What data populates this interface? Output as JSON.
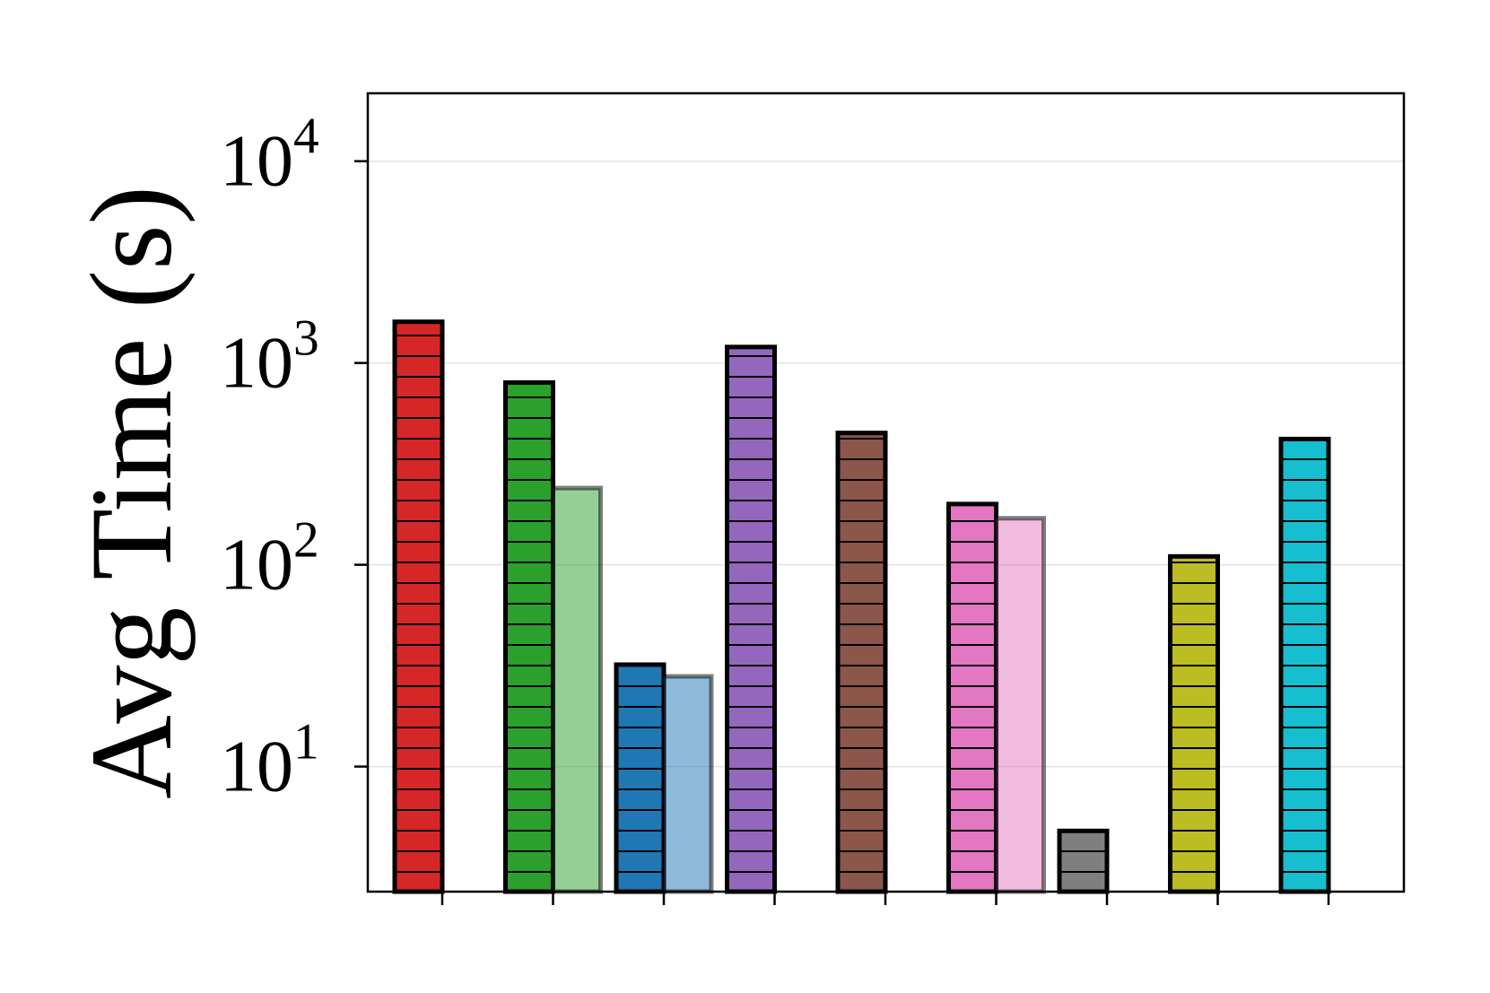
{
  "chart_data": {
    "type": "bar",
    "ylabel": "Avg Time (s)",
    "log_y": true,
    "grid": true,
    "categories": [
      null,
      null,
      null,
      null,
      null,
      null,
      null,
      null,
      null
    ],
    "series": [
      {
        "hatch": "-",
        "alpha": 1,
        "edgecolor": "#000000",
        "colors": [
          "#d62728",
          "#2ca02c",
          "#1f77b4",
          "#9467bd",
          "#8c564b",
          "#e377c2",
          "#7f7f7f",
          "#bcbd22",
          "#17becf"
        ],
        "values": [
          1600,
          800,
          32,
          1200,
          450,
          200,
          4.8,
          110,
          420
        ]
      },
      {
        "alpha": 0.5,
        "edgecolor": "#000000",
        "colors": [
          "#d62728",
          "#2ca02c",
          "#1f77b4",
          "#9467bd",
          "#8c564b",
          "#e377c2",
          "#7f7f7f",
          "#bcbd22",
          "#17becf"
        ],
        "values": [
          null,
          240,
          28,
          null,
          null,
          170,
          null,
          null,
          null
        ]
      }
    ],
    "ylim": [
      2.4,
      21700
    ],
    "yticks": [
      {
        "value": 10,
        "label": "10^1"
      },
      {
        "value": 100,
        "label": "10^2"
      },
      {
        "value": 1000,
        "label": "10^3"
      },
      {
        "value": 10000,
        "label": "10^4"
      }
    ]
  }
}
